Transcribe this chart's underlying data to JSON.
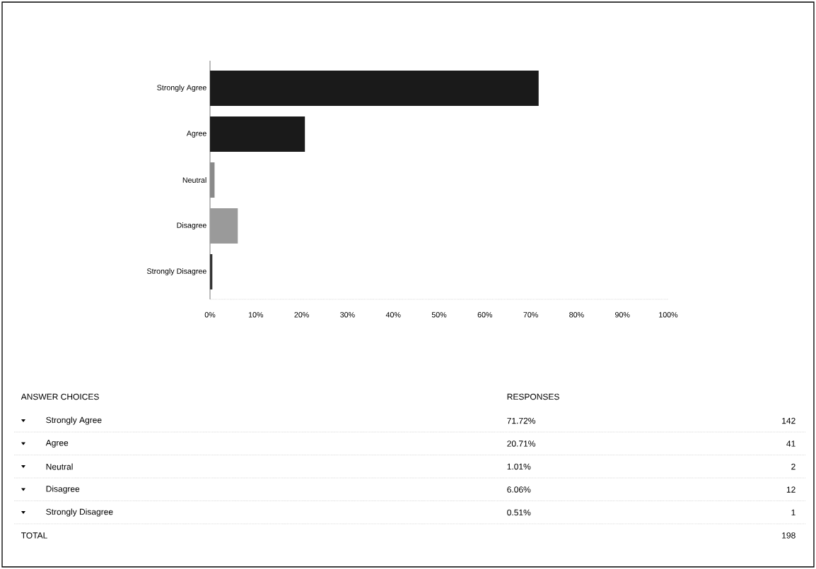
{
  "chart_data": {
    "type": "bar",
    "orientation": "horizontal",
    "categories": [
      "Strongly Agree",
      "Agree",
      "Neutral",
      "Disagree",
      "Strongly Disagree"
    ],
    "values": [
      71.72,
      20.71,
      1.01,
      6.06,
      0.51
    ],
    "colors": [
      "#1a1a1a",
      "#1a1a1a",
      "#8a8a8a",
      "#9a9a9a",
      "#333333"
    ],
    "xlim": [
      0,
      100
    ],
    "xticks": [
      {
        "value": 0,
        "label": "0%"
      },
      {
        "value": 10,
        "label": "10%"
      },
      {
        "value": 20,
        "label": "20%"
      },
      {
        "value": 30,
        "label": "30%"
      },
      {
        "value": 40,
        "label": "40%"
      },
      {
        "value": 50,
        "label": "50%"
      },
      {
        "value": 60,
        "label": "60%"
      },
      {
        "value": 70,
        "label": "70%"
      },
      {
        "value": 80,
        "label": "80%"
      },
      {
        "value": 90,
        "label": "90%"
      },
      {
        "value": 100,
        "label": "100%"
      }
    ],
    "annotations": [
      "ANSWER CHOICES",
      "RESPONSES",
      "142",
      "41",
      "2",
      "12",
      "1",
      "TOTAL",
      "198",
      "71.72%",
      "20.71%",
      "1.01%",
      "6.06%",
      "0.51%"
    ]
  }
}
